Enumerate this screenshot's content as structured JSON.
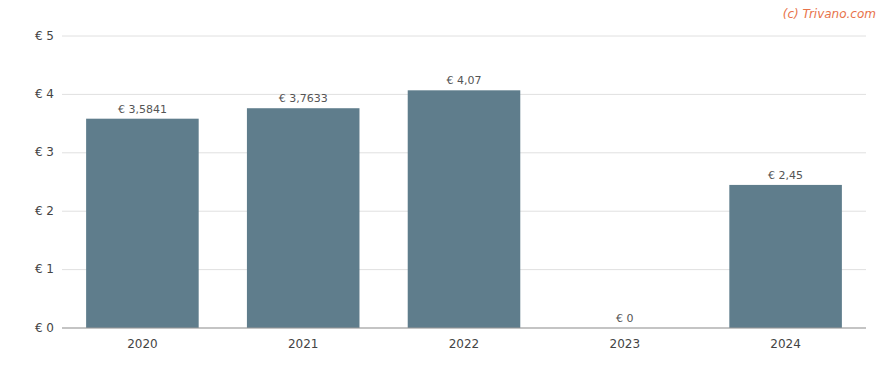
{
  "chart_data": {
    "type": "bar",
    "categories": [
      "2020",
      "2021",
      "2022",
      "2023",
      "2024"
    ],
    "values": [
      3.5841,
      3.7633,
      4.07,
      0.0,
      2.45
    ],
    "value_labels": [
      "€ 3,5841",
      "€ 3,7633",
      "€ 4,07",
      "€ 0",
      "€ 2,45"
    ],
    "data_labels": true,
    "color": "#5f7d8c",
    "ylim": [
      0,
      5
    ],
    "yticks": [
      {
        "value": 0,
        "label": "€ 0"
      },
      {
        "value": 1,
        "label": "€ 1"
      },
      {
        "value": 2,
        "label": "€ 2"
      },
      {
        "value": 3,
        "label": "€ 3"
      },
      {
        "value": 4,
        "label": "€ 4"
      },
      {
        "value": 5,
        "label": "€ 5"
      }
    ],
    "grid": true,
    "annotations": [
      "(c) Trivano.com"
    ]
  }
}
